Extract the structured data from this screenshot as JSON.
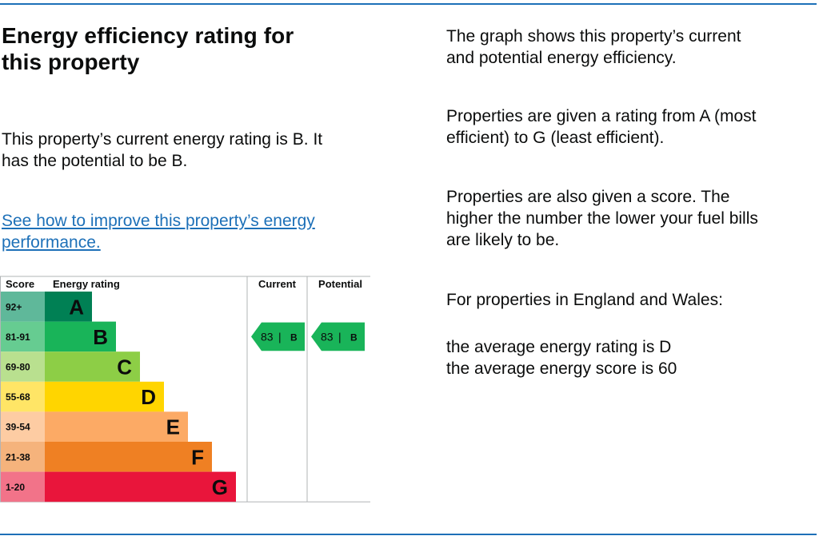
{
  "heading": {
    "line1": "Energy efficiency rating for",
    "line2": "this property"
  },
  "current_rating_text": {
    "line1": "This property’s current energy rating is B. It",
    "line2": "has the potential to be B."
  },
  "improve_link": {
    "line1": "See how to improve this property’s energy",
    "line2": "performance."
  },
  "explainer": {
    "graph": [
      "The graph shows this property’s current",
      "and potential energy efficiency."
    ],
    "ratings": [
      "Properties are given a rating from A (most",
      "efficient) to G (least efficient)."
    ],
    "score": [
      "Properties are also given a score. The",
      "higher the number the lower your fuel bills",
      "are likely to be."
    ],
    "region": "For properties in England and Wales:",
    "averages": [
      "the average energy rating is D",
      "the average energy score is 60"
    ]
  },
  "colors": {
    "link": "#1d70b8",
    "rule": "#1d70b8",
    "grid": "#b1b4b6"
  },
  "chart_data": {
    "type": "bar",
    "headers": {
      "score": "Score",
      "rating": "Energy rating",
      "current": "Current",
      "potential": "Potential"
    },
    "bands": [
      {
        "score": "92+",
        "letter": "A",
        "color": "#008054",
        "score_color": "#5fb89a"
      },
      {
        "score": "81-91",
        "letter": "B",
        "color": "#19b459",
        "score_color": "#66cc91"
      },
      {
        "score": "69-80",
        "letter": "C",
        "color": "#8dce46",
        "score_color": "#b9e08f"
      },
      {
        "score": "55-68",
        "letter": "D",
        "color": "#ffd500",
        "score_color": "#ffe566"
      },
      {
        "score": "39-54",
        "letter": "E",
        "color": "#fcaa65",
        "score_color": "#fdcca3"
      },
      {
        "score": "21-38",
        "letter": "F",
        "color": "#ef8023",
        "score_color": "#f5b37c"
      },
      {
        "score": "1-20",
        "letter": "G",
        "color": "#e9153b",
        "score_color": "#f27389"
      }
    ],
    "current": {
      "value": 83,
      "letter": "B",
      "color": "#19b459"
    },
    "potential": {
      "value": 83,
      "letter": "B",
      "color": "#19b459"
    }
  }
}
